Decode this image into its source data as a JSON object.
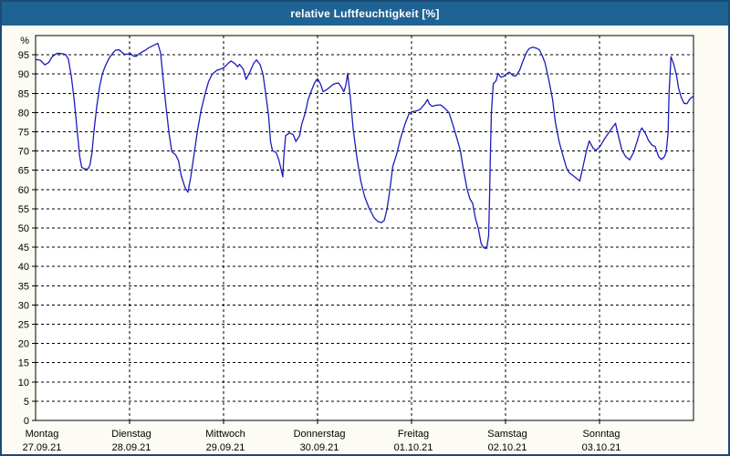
{
  "window": {
    "title": "relative Luftfeuchtigkeit [%]"
  },
  "colors": {
    "titlebar_bg": "#1f6394",
    "title_text": "#ffffff",
    "window_border": "#1b4a75",
    "content_bg": "#fcfcf4",
    "plot_bg": "#ffffff",
    "grid": "#000000",
    "line": "#1c1cbc"
  },
  "chart_data": {
    "type": "line",
    "title": "relative Luftfeuchtigkeit [%]",
    "ylabel": "%",
    "ylim": [
      0,
      100
    ],
    "y_ticks": [
      0,
      5,
      10,
      15,
      20,
      25,
      30,
      35,
      40,
      45,
      50,
      55,
      60,
      65,
      70,
      75,
      80,
      85,
      90,
      95
    ],
    "grid": "dashed",
    "legend": "none",
    "x_axis": {
      "unit": "days",
      "days": [
        {
          "name": "Montag",
          "date": "27.09.21"
        },
        {
          "name": "Dienstag",
          "date": "28.09.21"
        },
        {
          "name": "Mittwoch",
          "date": "29.09.21"
        },
        {
          "name": "Donnerstag",
          "date": "30.09.21"
        },
        {
          "name": "Freitag",
          "date": "01.10.21"
        },
        {
          "name": "Samstag",
          "date": "02.10.21"
        },
        {
          "name": "Sonntag",
          "date": "03.10.21"
        }
      ]
    },
    "series": [
      {
        "name": "relative Luftfeuchtigkeit",
        "color": "#1c1cbc",
        "points": [
          [
            0.0,
            93.8
          ],
          [
            0.05,
            93.6
          ],
          [
            0.1,
            92.4
          ],
          [
            0.14,
            93.0
          ],
          [
            0.18,
            94.6
          ],
          [
            0.23,
            95.4
          ],
          [
            0.28,
            95.3
          ],
          [
            0.32,
            95.1
          ],
          [
            0.35,
            93.8
          ],
          [
            0.38,
            89.5
          ],
          [
            0.41,
            83.5
          ],
          [
            0.44,
            76.0
          ],
          [
            0.47,
            68.5
          ],
          [
            0.49,
            65.8
          ],
          [
            0.52,
            65.3
          ],
          [
            0.56,
            65.4
          ],
          [
            0.58,
            66.5
          ],
          [
            0.6,
            69.5
          ],
          [
            0.62,
            75.0
          ],
          [
            0.65,
            81.5
          ],
          [
            0.68,
            86.5
          ],
          [
            0.71,
            90.0
          ],
          [
            0.74,
            92.0
          ],
          [
            0.78,
            94.0
          ],
          [
            0.82,
            95.4
          ],
          [
            0.85,
            96.2
          ],
          [
            0.89,
            96.3
          ],
          [
            0.92,
            95.6
          ],
          [
            0.95,
            95.1
          ],
          [
            0.98,
            95.2
          ],
          [
            1.01,
            95.3
          ],
          [
            1.04,
            94.7
          ],
          [
            1.07,
            94.6
          ],
          [
            1.11,
            95.4
          ],
          [
            1.16,
            96.1
          ],
          [
            1.21,
            96.9
          ],
          [
            1.26,
            97.5
          ],
          [
            1.3,
            98.0
          ],
          [
            1.33,
            95.5
          ],
          [
            1.36,
            88.0
          ],
          [
            1.39,
            81.0
          ],
          [
            1.42,
            74.5
          ],
          [
            1.45,
            69.8
          ],
          [
            1.49,
            69.0
          ],
          [
            1.52,
            67.5
          ],
          [
            1.55,
            63.5
          ],
          [
            1.59,
            60.5
          ],
          [
            1.62,
            59.3
          ],
          [
            1.65,
            63.0
          ],
          [
            1.68,
            68.0
          ],
          [
            1.72,
            75.0
          ],
          [
            1.76,
            80.5
          ],
          [
            1.8,
            84.5
          ],
          [
            1.84,
            88.0
          ],
          [
            1.88,
            90.0
          ],
          [
            1.93,
            91.0
          ],
          [
            1.97,
            91.3
          ],
          [
            2.01,
            91.8
          ],
          [
            2.05,
            92.8
          ],
          [
            2.08,
            93.4
          ],
          [
            2.12,
            92.7
          ],
          [
            2.15,
            91.9
          ],
          [
            2.17,
            92.5
          ],
          [
            2.21,
            91.3
          ],
          [
            2.24,
            88.6
          ],
          [
            2.28,
            90.5
          ],
          [
            2.32,
            92.8
          ],
          [
            2.35,
            93.7
          ],
          [
            2.39,
            92.4
          ],
          [
            2.42,
            89.8
          ],
          [
            2.45,
            84.5
          ],
          [
            2.48,
            79.0
          ],
          [
            2.5,
            72.5
          ],
          [
            2.52,
            70.1
          ],
          [
            2.56,
            69.6
          ],
          [
            2.59,
            67.5
          ],
          [
            2.61,
            65.5
          ],
          [
            2.63,
            63.3
          ],
          [
            2.64,
            68.0
          ],
          [
            2.66,
            74.0
          ],
          [
            2.7,
            74.7
          ],
          [
            2.74,
            74.3
          ],
          [
            2.77,
            72.5
          ],
          [
            2.81,
            74.0
          ],
          [
            2.83,
            76.8
          ],
          [
            2.87,
            80.0
          ],
          [
            2.9,
            83.4
          ],
          [
            2.94,
            86.0
          ],
          [
            2.97,
            87.8
          ],
          [
            3.0,
            88.8
          ],
          [
            3.03,
            87.5
          ],
          [
            3.06,
            85.4
          ],
          [
            3.1,
            86.0
          ],
          [
            3.14,
            86.8
          ],
          [
            3.17,
            87.4
          ],
          [
            3.22,
            87.7
          ],
          [
            3.25,
            86.8
          ],
          [
            3.28,
            85.4
          ],
          [
            3.3,
            87.0
          ],
          [
            3.32,
            90.2
          ],
          [
            3.35,
            83.5
          ],
          [
            3.38,
            75.6
          ],
          [
            3.42,
            68.0
          ],
          [
            3.46,
            62.2
          ],
          [
            3.5,
            58.2
          ],
          [
            3.55,
            55.1
          ],
          [
            3.6,
            52.7
          ],
          [
            3.64,
            51.7
          ],
          [
            3.68,
            51.4
          ],
          [
            3.71,
            52.0
          ],
          [
            3.74,
            55.0
          ],
          [
            3.77,
            60.0
          ],
          [
            3.8,
            66.0
          ],
          [
            3.84,
            69.0
          ],
          [
            3.88,
            73.0
          ],
          [
            3.93,
            77.0
          ],
          [
            3.97,
            79.5
          ],
          [
            4.0,
            80.2
          ],
          [
            4.05,
            80.4
          ],
          [
            4.09,
            80.8
          ],
          [
            4.14,
            82.2
          ],
          [
            4.17,
            83.4
          ],
          [
            4.19,
            82.2
          ],
          [
            4.22,
            81.6
          ],
          [
            4.26,
            81.9
          ],
          [
            4.31,
            82.0
          ],
          [
            4.36,
            81.0
          ],
          [
            4.4,
            79.9
          ],
          [
            4.44,
            76.8
          ],
          [
            4.48,
            73.6
          ],
          [
            4.52,
            70.0
          ],
          [
            4.55,
            65.5
          ],
          [
            4.59,
            60.2
          ],
          [
            4.62,
            57.6
          ],
          [
            4.65,
            56.4
          ],
          [
            4.68,
            52.5
          ],
          [
            4.71,
            50.0
          ],
          [
            4.74,
            46.0
          ],
          [
            4.77,
            44.8
          ],
          [
            4.8,
            44.7
          ],
          [
            4.82,
            48.0
          ],
          [
            4.83,
            58.0
          ],
          [
            4.84,
            70.0
          ],
          [
            4.85,
            80.0
          ],
          [
            4.87,
            87.5
          ],
          [
            4.9,
            88.3
          ],
          [
            4.92,
            90.2
          ],
          [
            4.95,
            89.2
          ],
          [
            4.98,
            89.4
          ],
          [
            5.01,
            90.0
          ],
          [
            5.04,
            90.5
          ],
          [
            5.08,
            89.6
          ],
          [
            5.11,
            89.5
          ],
          [
            5.15,
            91.0
          ],
          [
            5.18,
            93.0
          ],
          [
            5.22,
            95.5
          ],
          [
            5.25,
            96.6
          ],
          [
            5.29,
            97.0
          ],
          [
            5.33,
            96.7
          ],
          [
            5.36,
            96.3
          ],
          [
            5.39,
            94.8
          ],
          [
            5.42,
            92.9
          ],
          [
            5.46,
            88.5
          ],
          [
            5.5,
            83.5
          ],
          [
            5.53,
            77.5
          ],
          [
            5.57,
            72.5
          ],
          [
            5.61,
            68.9
          ],
          [
            5.65,
            65.5
          ],
          [
            5.68,
            64.3
          ],
          [
            5.72,
            63.6
          ],
          [
            5.76,
            62.8
          ],
          [
            5.79,
            62.2
          ],
          [
            5.82,
            65.5
          ],
          [
            5.86,
            70.0
          ],
          [
            5.89,
            72.6
          ],
          [
            5.93,
            70.8
          ],
          [
            5.96,
            70.2
          ],
          [
            6.0,
            71.0
          ],
          [
            6.05,
            73.0
          ],
          [
            6.1,
            74.8
          ],
          [
            6.14,
            76.2
          ],
          [
            6.17,
            77.2
          ],
          [
            6.2,
            74.0
          ],
          [
            6.24,
            70.1
          ],
          [
            6.28,
            68.5
          ],
          [
            6.32,
            67.7
          ],
          [
            6.36,
            69.5
          ],
          [
            6.4,
            72.5
          ],
          [
            6.43,
            75.0
          ],
          [
            6.45,
            76.0
          ],
          [
            6.49,
            74.5
          ],
          [
            6.52,
            72.8
          ],
          [
            6.56,
            71.5
          ],
          [
            6.59,
            71.2
          ],
          [
            6.63,
            68.5
          ],
          [
            6.66,
            67.8
          ],
          [
            6.69,
            68.5
          ],
          [
            6.71,
            69.7
          ],
          [
            6.73,
            75.0
          ],
          [
            6.74,
            85.0
          ],
          [
            6.76,
            94.5
          ],
          [
            6.79,
            92.5
          ],
          [
            6.82,
            89.5
          ],
          [
            6.84,
            86.5
          ],
          [
            6.87,
            83.9
          ],
          [
            6.9,
            82.4
          ],
          [
            6.93,
            82.3
          ],
          [
            6.96,
            83.5
          ],
          [
            7.0,
            84.3
          ]
        ]
      }
    ]
  }
}
